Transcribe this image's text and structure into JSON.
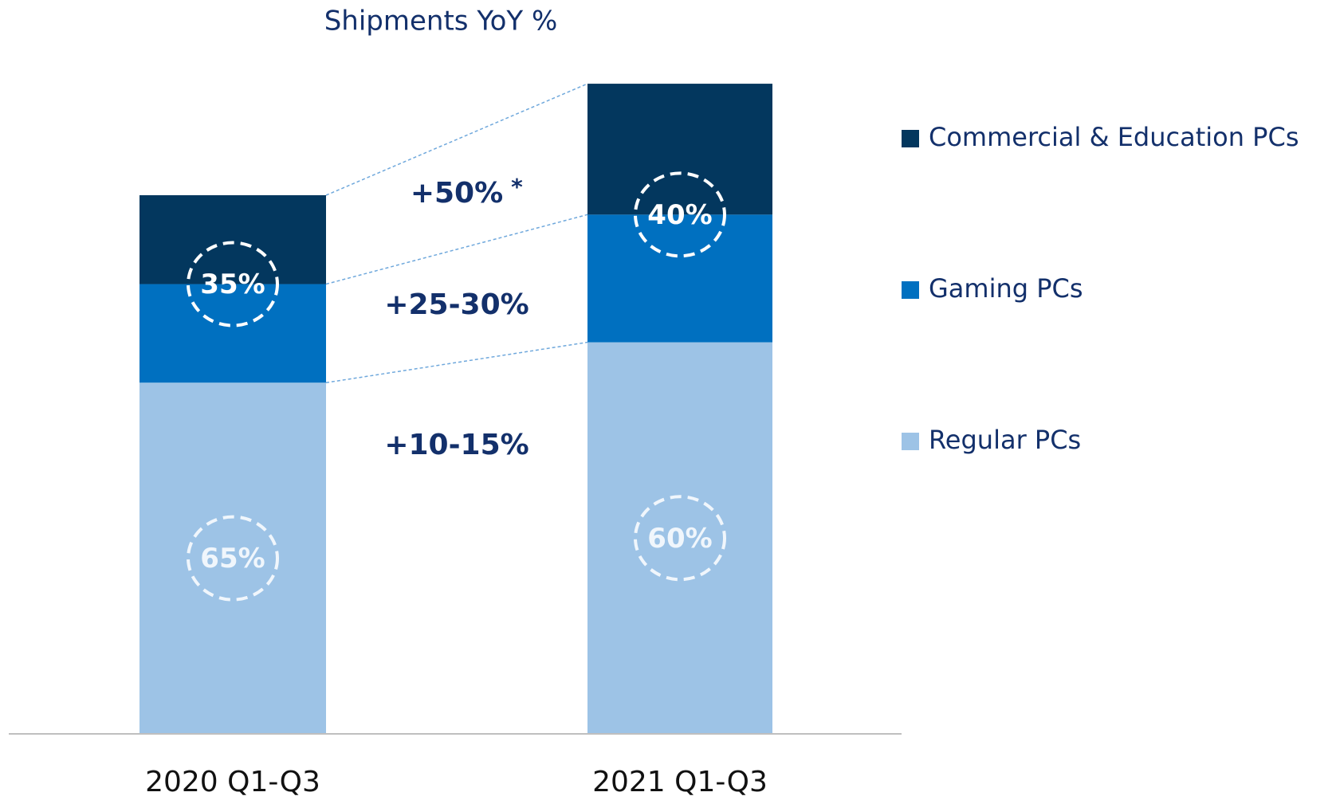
{
  "chart_data": {
    "type": "stacked_bar",
    "title": "Shipments YoY %",
    "categories": [
      "2020 Q1-Q3",
      "2021 Q1-Q3"
    ],
    "series": [
      {
        "name": "Regular PCs",
        "color": "#9dc3e6",
        "values": [
          65.2,
          72.7
        ],
        "share_labels": [
          "65%",
          "60%"
        ],
        "growth_label": "+10-15%"
      },
      {
        "name": "Gaming PCs",
        "color": "#0070c0",
        "values": [
          18.3,
          23.7
        ],
        "growth_label": "+25-30%"
      },
      {
        "name": "Commercial & Education PCs",
        "color": "#03375e",
        "values": [
          16.5,
          24.3
        ],
        "growth_label": "+50%",
        "growth_note": "*"
      }
    ],
    "combined_share_labels": [
      "35%",
      "40%"
    ],
    "ylim": [
      0,
      125
    ]
  }
}
